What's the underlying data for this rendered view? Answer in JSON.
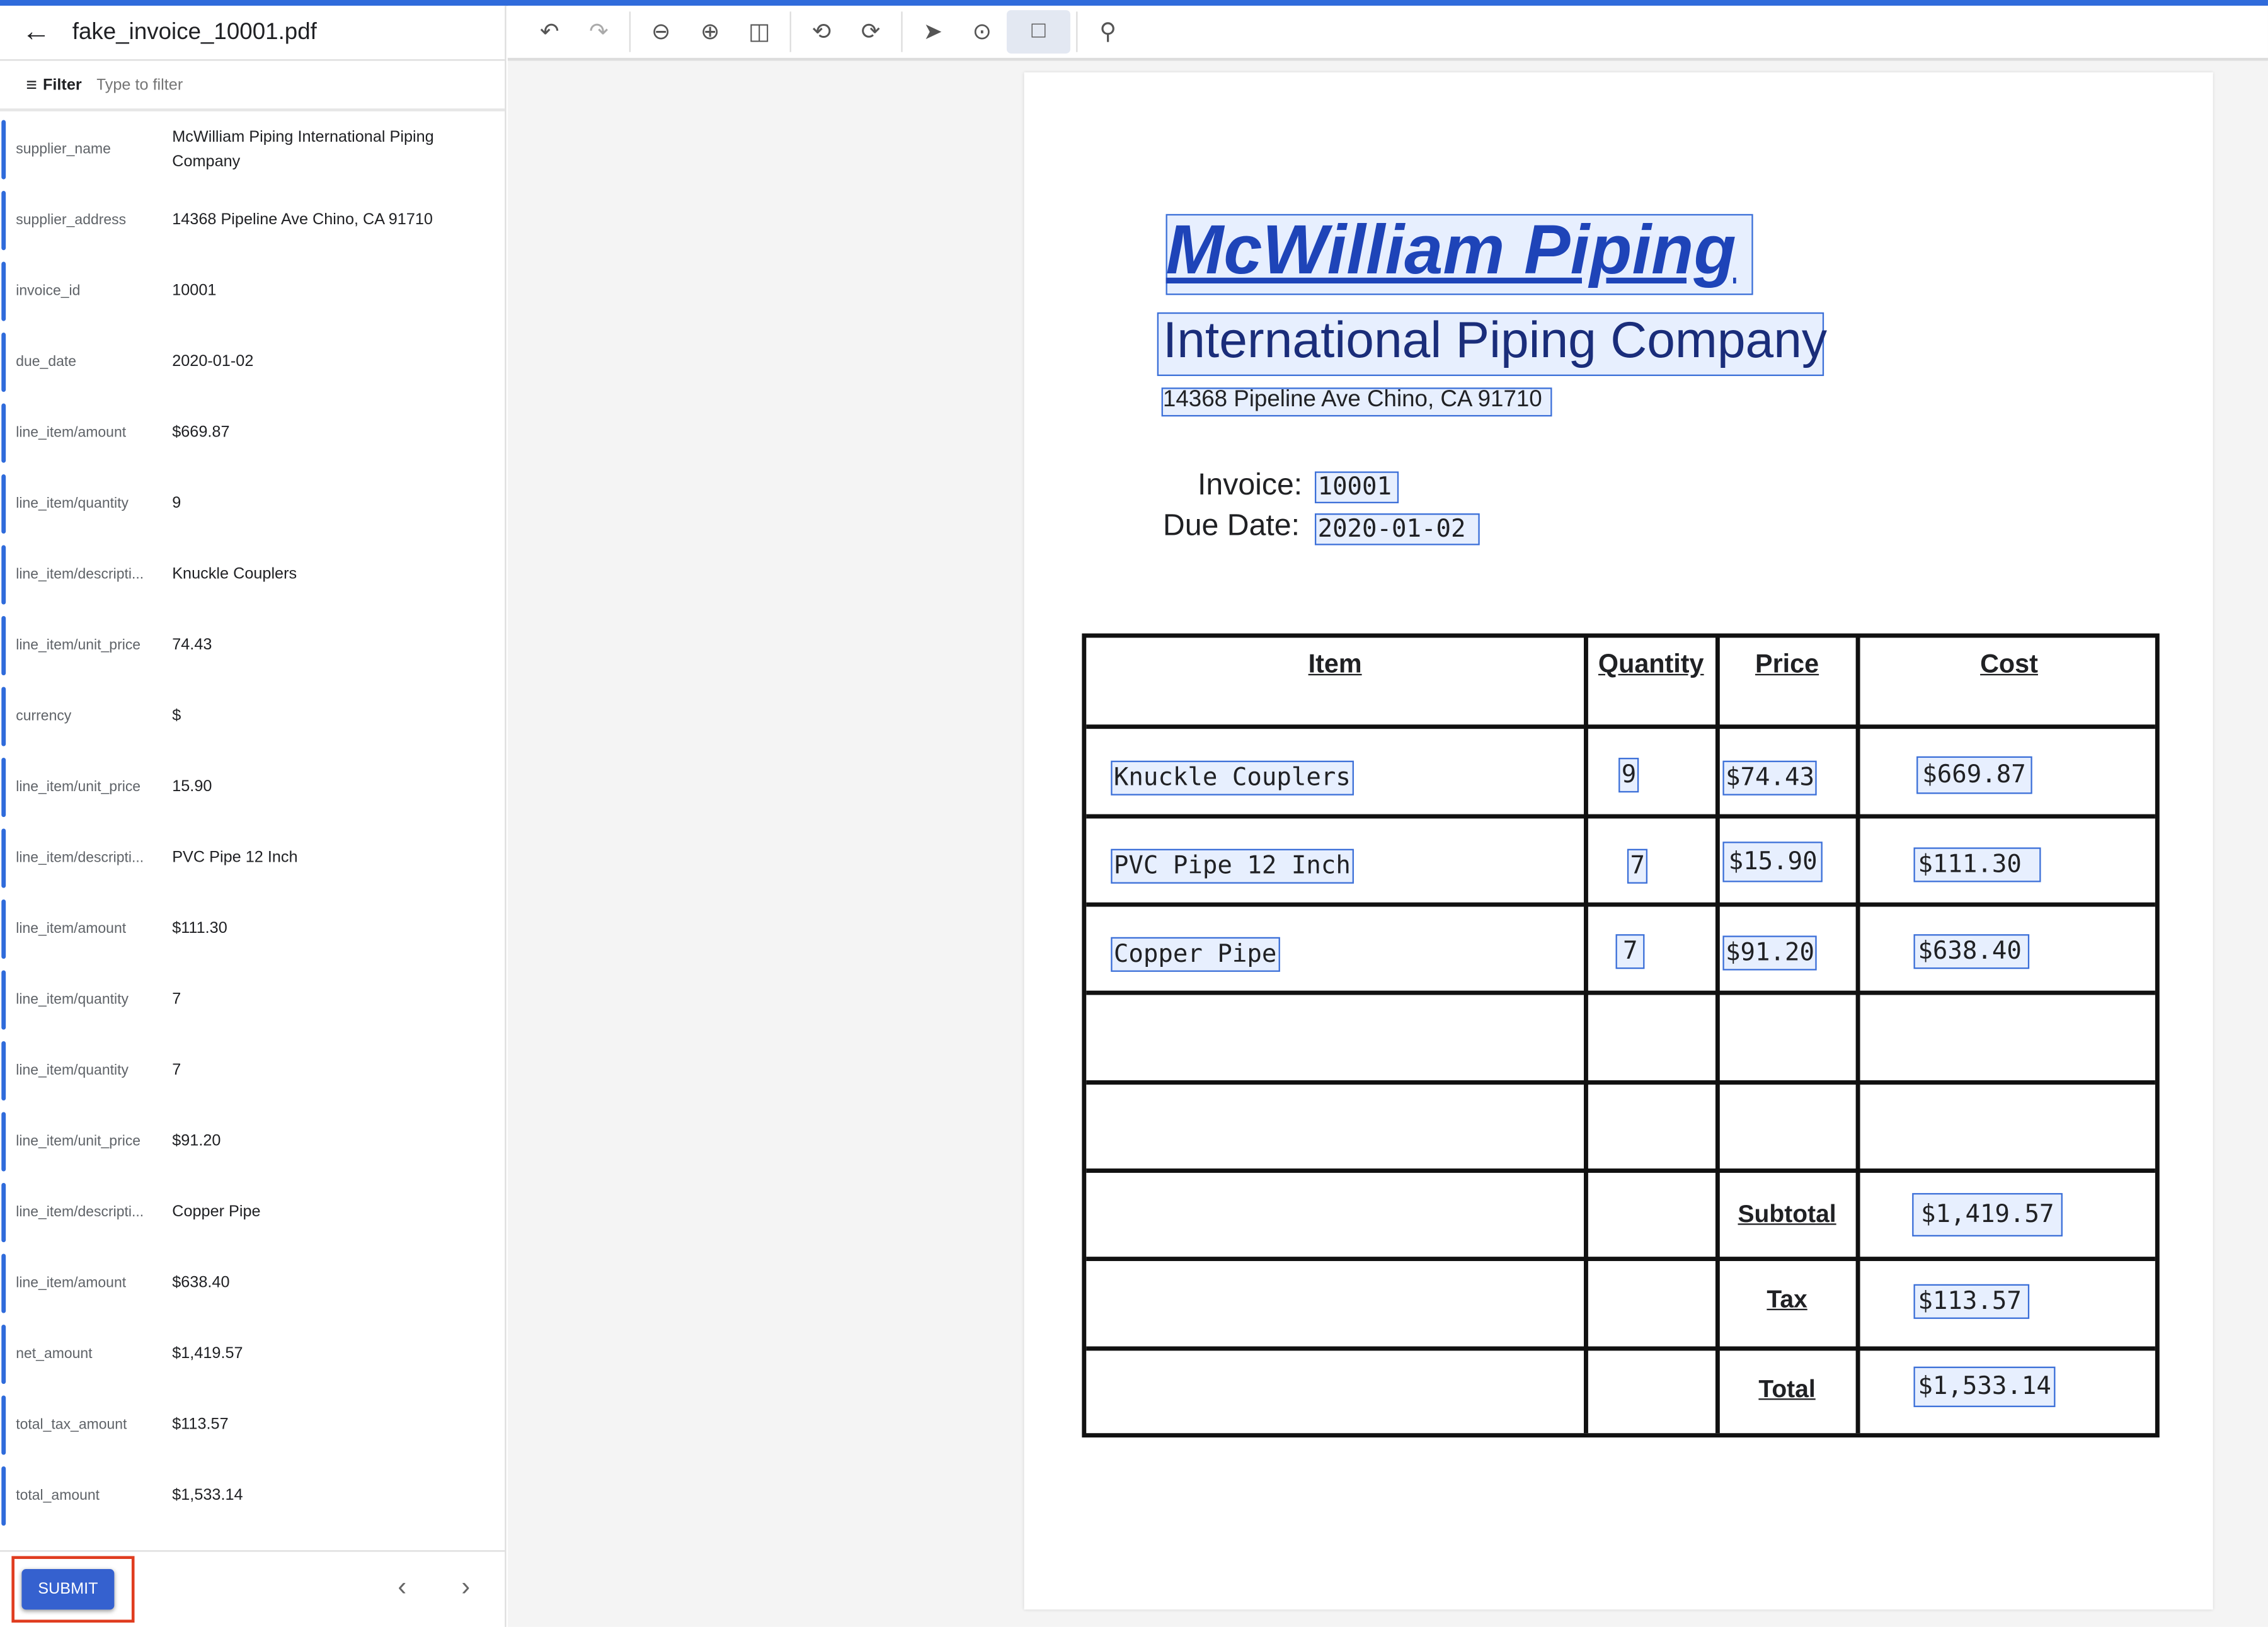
{
  "file_name": "fake_invoice_10001.pdf",
  "filter": {
    "label": "Filter",
    "placeholder": "Type to filter"
  },
  "fields": [
    {
      "key": "supplier_name",
      "value": "McWilliam Piping International Piping Company"
    },
    {
      "key": "supplier_address",
      "value": "14368 Pipeline Ave Chino, CA 91710"
    },
    {
      "key": "invoice_id",
      "value": "10001"
    },
    {
      "key": "due_date",
      "value": "2020-01-02"
    },
    {
      "key": "line_item/amount",
      "value": "$669.87"
    },
    {
      "key": "line_item/quantity",
      "value": "9"
    },
    {
      "key": "line_item/descripti...",
      "value": "Knuckle Couplers"
    },
    {
      "key": "line_item/unit_price",
      "value": "74.43"
    },
    {
      "key": "currency",
      "value": "$"
    },
    {
      "key": "line_item/unit_price",
      "value": "15.90"
    },
    {
      "key": "line_item/descripti...",
      "value": "PVC Pipe 12 Inch"
    },
    {
      "key": "line_item/amount",
      "value": "$111.30"
    },
    {
      "key": "line_item/quantity",
      "value": "7"
    },
    {
      "key": "line_item/quantity",
      "value": "7"
    },
    {
      "key": "line_item/unit_price",
      "value": "$91.20"
    },
    {
      "key": "line_item/descripti...",
      "value": "Copper Pipe"
    },
    {
      "key": "line_item/amount",
      "value": "$638.40"
    },
    {
      "key": "net_amount",
      "value": "$1,419.57"
    },
    {
      "key": "total_tax_amount",
      "value": "$113.57"
    },
    {
      "key": "total_amount",
      "value": "$1,533.14"
    }
  ],
  "footer": {
    "submit": "SUBMIT"
  },
  "toolbar_icons": [
    "undo",
    "redo",
    "zoom-out",
    "zoom-in",
    "fit-page",
    "rotate-left",
    "rotate-right",
    "select",
    "text-select",
    "box-select",
    "search"
  ],
  "doc": {
    "title": "McWilliam Piping",
    "subtitle": "International Piping Company",
    "address": "14368 Pipeline Ave Chino, CA 91710",
    "invoice_label": "Invoice:",
    "invoice_value": "10001",
    "due_label": "Due Date:",
    "due_value": "2020-01-02",
    "headers": [
      "Item",
      "Quantity",
      "Price",
      "Cost"
    ],
    "rows": [
      {
        "item": "Knuckle Couplers",
        "qty": "9",
        "price": "$74.43",
        "cost": "$669.87"
      },
      {
        "item": "PVC Pipe 12 Inch",
        "qty": "7",
        "price": "$15.90",
        "cost": "$111.30"
      },
      {
        "item": "Copper Pipe",
        "qty": "7",
        "price": "$91.20",
        "cost": "$638.40"
      }
    ],
    "subtotal_label": "Subtotal",
    "subtotal": "$1,419.57",
    "tax_label": "Tax",
    "tax": "$113.57",
    "total_label": "Total",
    "total": "$1,533.14"
  },
  "colors": {
    "accent": "#2f6bdb",
    "submit": "#3561cf",
    "highlight_border": "#3b6fd8"
  }
}
